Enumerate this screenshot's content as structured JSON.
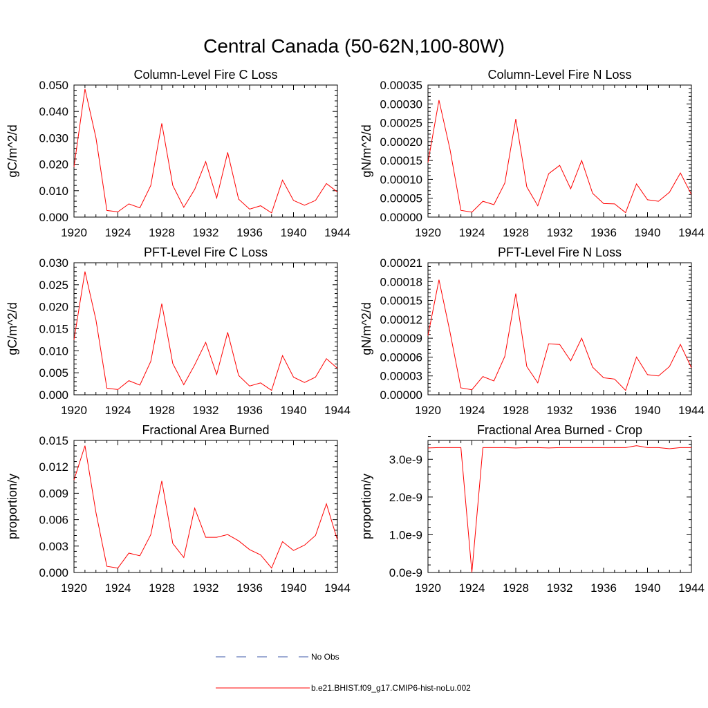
{
  "figure": {
    "title": "Central Canada (50-62N,100-80W)"
  },
  "legend": {
    "items": [
      {
        "label": "No Obs",
        "color": "#3c5aa8",
        "style": "dashed"
      },
      {
        "label": "b.e21.BHIST.f09_g17.CMIP6-hist-noLu.002",
        "color": "#ff0000",
        "style": "solid"
      }
    ]
  },
  "chart_data": [
    {
      "type": "line",
      "title": "Column-Level Fire C Loss",
      "xlabel": "",
      "ylabel": "gC/m^2/d",
      "xlim": [
        1920,
        1944
      ],
      "ylim": [
        0,
        0.05
      ],
      "xticks": [
        1920,
        1924,
        1928,
        1932,
        1936,
        1940,
        1944
      ],
      "xtick_labels": [
        "1920",
        "1924",
        "1928",
        "1932",
        "1936",
        "1940",
        "1944"
      ],
      "yticks": [
        0,
        0.01,
        0.02,
        0.03,
        0.04,
        0.05
      ],
      "ytick_labels": [
        "0.000",
        "0.010",
        "0.020",
        "0.030",
        "0.040",
        "0.050"
      ],
      "x": [
        1920,
        1921,
        1922,
        1923,
        1924,
        1925,
        1926,
        1927,
        1928,
        1929,
        1930,
        1931,
        1932,
        1933,
        1934,
        1935,
        1936,
        1937,
        1938,
        1939,
        1940,
        1941,
        1942,
        1943,
        1944
      ],
      "series": [
        {
          "color": "#ff0000",
          "values": [
            0.019,
            0.0485,
            0.03,
            0.0025,
            0.002,
            0.005,
            0.0035,
            0.012,
            0.0355,
            0.012,
            0.0037,
            0.0105,
            0.021,
            0.0072,
            0.0245,
            0.0068,
            0.003,
            0.0043,
            0.0016,
            0.014,
            0.0063,
            0.0045,
            0.0063,
            0.0127,
            0.0095
          ]
        }
      ]
    },
    {
      "type": "line",
      "title": "Column-Level Fire N Loss",
      "xlabel": "",
      "ylabel": "gN/m^2/d",
      "xlim": [
        1920,
        1944
      ],
      "ylim": [
        0,
        0.00035
      ],
      "xticks": [
        1920,
        1924,
        1928,
        1932,
        1936,
        1940,
        1944
      ],
      "xtick_labels": [
        "1920",
        "1924",
        "1928",
        "1932",
        "1936",
        "1940",
        "1944"
      ],
      "yticks": [
        0,
        5e-05,
        0.0001,
        0.00015,
        0.0002,
        0.00025,
        0.0003,
        0.00035
      ],
      "ytick_labels": [
        "0.00000",
        "0.00005",
        "0.00010",
        "0.00015",
        "0.00020",
        "0.00025",
        "0.00030",
        "0.00035"
      ],
      "x": [
        1920,
        1921,
        1922,
        1923,
        1924,
        1925,
        1926,
        1927,
        1928,
        1929,
        1930,
        1931,
        1932,
        1933,
        1934,
        1935,
        1936,
        1937,
        1938,
        1939,
        1940,
        1941,
        1942,
        1943,
        1944
      ],
      "series": [
        {
          "color": "#ff0000",
          "values": [
            0.000145,
            0.00031,
            0.00018,
            1.8e-05,
            1.3e-05,
            4.2e-05,
            3.3e-05,
            9e-05,
            0.00026,
            8e-05,
            3e-05,
            0.000115,
            0.000137,
            7.5e-05,
            0.00015,
            6.3e-05,
            3.6e-05,
            3.5e-05,
            1.2e-05,
            8.8e-05,
            4.6e-05,
            4.2e-05,
            6.6e-05,
            0.000117,
            6e-05
          ]
        }
      ]
    },
    {
      "type": "line",
      "title": "PFT-Level Fire C Loss",
      "xlabel": "",
      "ylabel": "gC/m^2/d",
      "xlim": [
        1920,
        1944
      ],
      "ylim": [
        0,
        0.03
      ],
      "xticks": [
        1920,
        1924,
        1928,
        1932,
        1936,
        1940,
        1944
      ],
      "xtick_labels": [
        "1920",
        "1924",
        "1928",
        "1932",
        "1936",
        "1940",
        "1944"
      ],
      "yticks": [
        0,
        0.005,
        0.01,
        0.015,
        0.02,
        0.025,
        0.03
      ],
      "ytick_labels": [
        "0.000",
        "0.005",
        "0.010",
        "0.015",
        "0.020",
        "0.025",
        "0.030"
      ],
      "x": [
        1920,
        1921,
        1922,
        1923,
        1924,
        1925,
        1926,
        1927,
        1928,
        1929,
        1930,
        1931,
        1932,
        1933,
        1934,
        1935,
        1936,
        1937,
        1938,
        1939,
        1940,
        1941,
        1942,
        1943,
        1944
      ],
      "series": [
        {
          "color": "#ff0000",
          "values": [
            0.0125,
            0.028,
            0.017,
            0.0015,
            0.0012,
            0.0032,
            0.0022,
            0.0076,
            0.0207,
            0.0071,
            0.0023,
            0.0068,
            0.0119,
            0.0046,
            0.0142,
            0.0044,
            0.002,
            0.0027,
            0.001,
            0.0089,
            0.004,
            0.0028,
            0.004,
            0.0082,
            0.006
          ]
        }
      ]
    },
    {
      "type": "line",
      "title": "PFT-Level Fire N Loss",
      "xlabel": "",
      "ylabel": "gN/m^2/d",
      "xlim": [
        1920,
        1944
      ],
      "ylim": [
        0,
        0.00021
      ],
      "xticks": [
        1920,
        1924,
        1928,
        1932,
        1936,
        1940,
        1944
      ],
      "xtick_labels": [
        "1920",
        "1924",
        "1928",
        "1932",
        "1936",
        "1940",
        "1944"
      ],
      "yticks": [
        0,
        3e-05,
        6e-05,
        9e-05,
        0.00012,
        0.00015,
        0.00018,
        0.00021
      ],
      "ytick_labels": [
        "0.00000",
        "0.00003",
        "0.00006",
        "0.00009",
        "0.00012",
        "0.00015",
        "0.00018",
        "0.00021"
      ],
      "x": [
        1920,
        1921,
        1922,
        1923,
        1924,
        1925,
        1926,
        1927,
        1928,
        1929,
        1930,
        1931,
        1932,
        1933,
        1934,
        1935,
        1936,
        1937,
        1938,
        1939,
        1940,
        1941,
        1942,
        1943,
        1944
      ],
      "series": [
        {
          "color": "#ff0000",
          "values": [
            9.4e-05,
            0.000183,
            0.0001,
            1.1e-05,
            8e-06,
            2.9e-05,
            2.2e-05,
            6.1e-05,
            0.000161,
            4.5e-05,
            1.9e-05,
            8.1e-05,
            8e-05,
            5.4e-05,
            9e-05,
            4.4e-05,
            2.7e-05,
            2.5e-05,
            7e-06,
            6e-05,
            3.2e-05,
            3e-05,
            4.5e-05,
            8e-05,
            4.3e-05
          ]
        }
      ]
    },
    {
      "type": "line",
      "title": "Fractional Area Burned",
      "xlabel": "",
      "ylabel": "proportion/y",
      "xlim": [
        1920,
        1944
      ],
      "ylim": [
        0,
        0.015
      ],
      "xticks": [
        1920,
        1924,
        1928,
        1932,
        1936,
        1940,
        1944
      ],
      "xtick_labels": [
        "1920",
        "1924",
        "1928",
        "1932",
        "1936",
        "1940",
        "1944"
      ],
      "yticks": [
        0,
        0.003,
        0.006,
        0.009,
        0.012,
        0.015
      ],
      "ytick_labels": [
        "0.000",
        "0.003",
        "0.006",
        "0.009",
        "0.012",
        "0.015"
      ],
      "x": [
        1920,
        1921,
        1922,
        1923,
        1924,
        1925,
        1926,
        1927,
        1928,
        1929,
        1930,
        1931,
        1932,
        1933,
        1934,
        1935,
        1936,
        1937,
        1938,
        1939,
        1940,
        1941,
        1942,
        1943,
        1944
      ],
      "series": [
        {
          "color": "#ff0000",
          "values": [
            0.0105,
            0.0144,
            0.0068,
            0.0007,
            0.0005,
            0.0022,
            0.0019,
            0.0043,
            0.0104,
            0.0033,
            0.0017,
            0.0073,
            0.004,
            0.004,
            0.0043,
            0.0036,
            0.0026,
            0.002,
            0.0005,
            0.0035,
            0.0025,
            0.0031,
            0.0042,
            0.0078,
            0.0037
          ]
        }
      ]
    },
    {
      "type": "line",
      "title": "Fractional Area Burned - Crop",
      "xlabel": "",
      "ylabel": "proportion/y",
      "xlim": [
        1920,
        1944
      ],
      "ylim": [
        0,
        3.5e-09
      ],
      "xticks": [
        1920,
        1924,
        1928,
        1932,
        1936,
        1940,
        1944
      ],
      "xtick_labels": [
        "1920",
        "1924",
        "1928",
        "1932",
        "1936",
        "1940",
        "1944"
      ],
      "yticks": [
        0,
        1e-09,
        2e-09,
        3e-09
      ],
      "ytick_labels": [
        "0.0e-9",
        "1.0e-9",
        "2.0e-9",
        "3.0e-9"
      ],
      "x": [
        1920,
        1921,
        1922,
        1923,
        1924,
        1925,
        1926,
        1927,
        1928,
        1929,
        1930,
        1931,
        1932,
        1933,
        1934,
        1935,
        1936,
        1937,
        1938,
        1939,
        1940,
        1941,
        1942,
        1943,
        1944
      ],
      "series": [
        {
          "color": "#ff0000",
          "values": [
            3.3e-09,
            3.31e-09,
            3.31e-09,
            3.31e-09,
            0,
            3.31e-09,
            3.31e-09,
            3.31e-09,
            3.3e-09,
            3.31e-09,
            3.31e-09,
            3.3e-09,
            3.31e-09,
            3.31e-09,
            3.31e-09,
            3.31e-09,
            3.31e-09,
            3.31e-09,
            3.31e-09,
            3.36e-09,
            3.31e-09,
            3.31e-09,
            3.28e-09,
            3.31e-09,
            3.31e-09
          ]
        }
      ]
    }
  ]
}
